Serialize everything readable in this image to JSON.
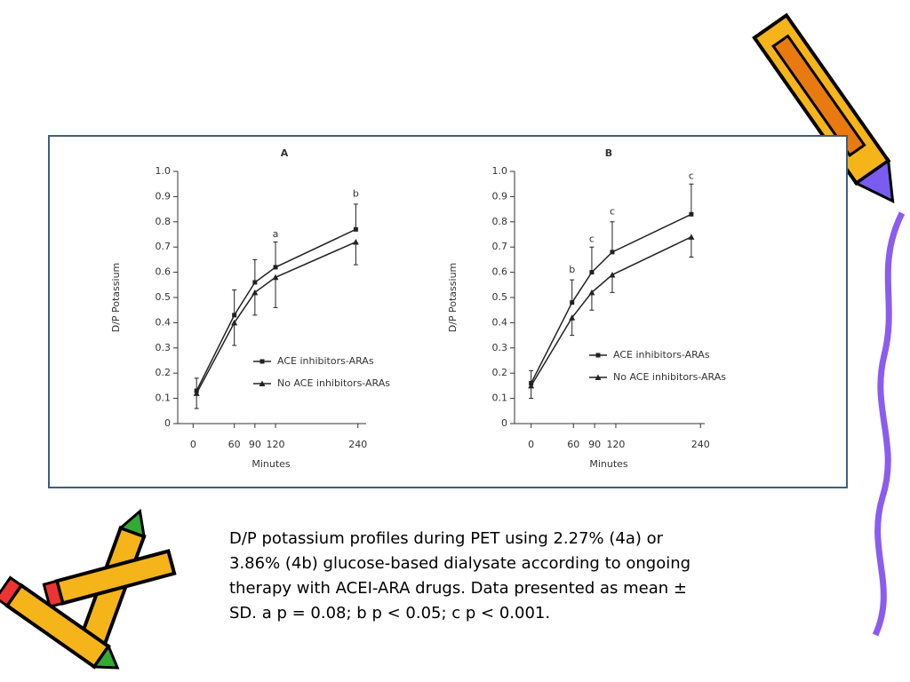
{
  "chart_data": [
    {
      "type": "line",
      "title": "A",
      "xlabel": "Minutes",
      "ylabel": "D/P Potassium",
      "x": [
        5,
        60,
        90,
        120,
        237
      ],
      "xlim": [
        -25,
        252
      ],
      "xticks": [
        0,
        60,
        90,
        120,
        240
      ],
      "ylim": [
        0,
        1
      ],
      "yticks": [
        0,
        0.1,
        0.2,
        0.3,
        0.4,
        0.5,
        0.6,
        0.7,
        0.8,
        0.9,
        {
          "value": 1,
          "label": "1.0"
        }
      ],
      "series": [
        {
          "name": "ACE inhibitors-ARAs",
          "marker": "square",
          "color": "#222",
          "error_direction": "up",
          "values": [
            0.13,
            0.43,
            0.56,
            0.62,
            0.77
          ],
          "errors": [
            0.05,
            0.1,
            0.09,
            0.1,
            0.1
          ]
        },
        {
          "name": "No ACE inhibitors-ARAs",
          "marker": "triangle",
          "color": "#222",
          "error_direction": "down",
          "values": [
            0.12,
            0.4,
            0.52,
            0.58,
            0.72
          ],
          "errors": [
            0.06,
            0.09,
            0.09,
            0.12,
            0.09
          ]
        }
      ],
      "annotations": [
        {
          "text": "a",
          "x": 120,
          "y": 0.75
        },
        {
          "text": "b",
          "x": 237,
          "y": 0.91
        }
      ]
    },
    {
      "type": "line",
      "title": "B",
      "xlabel": "Minutes",
      "ylabel": "D/P Potassium",
      "x": [
        0,
        58,
        86,
        115,
        227
      ],
      "xlim": [
        -26,
        246
      ],
      "xticks": [
        0,
        60,
        90,
        120,
        240
      ],
      "ylim": [
        0,
        1
      ],
      "yticks": [
        0,
        0.1,
        0.2,
        0.3,
        0.4,
        0.5,
        0.6,
        0.7,
        0.8,
        0.9,
        {
          "value": 1,
          "label": "1.0"
        }
      ],
      "series": [
        {
          "name": "ACE inhibitors-ARAs",
          "marker": "square",
          "color": "#222",
          "error_direction": "up",
          "values": [
            0.16,
            0.48,
            0.6,
            0.68,
            0.83
          ],
          "errors": [
            0.05,
            0.09,
            0.1,
            0.12,
            0.12
          ]
        },
        {
          "name": "No ACE inhibitors-ARAs",
          "marker": "triangle",
          "color": "#222",
          "error_direction": "down",
          "values": [
            0.15,
            0.42,
            0.52,
            0.59,
            0.74
          ],
          "errors": [
            0.05,
            0.07,
            0.07,
            0.07,
            0.08
          ]
        }
      ],
      "annotations": [
        {
          "text": "b",
          "x": 58,
          "y": 0.61
        },
        {
          "text": "c",
          "x": 86,
          "y": 0.73
        },
        {
          "text": "c",
          "x": 115,
          "y": 0.84
        },
        {
          "text": "c",
          "x": 227,
          "y": 0.98
        }
      ]
    }
  ],
  "caption": [
    "D/P potassium profiles during PET using 2.27% (4a) or",
    "3.86% (4b) glucose-based dialysate according to ongoing",
    "therapy with ACEI-ARA drugs. Data presented as mean ±",
    "SD. a p = 0.08; b p < 0.05; c p < 0.001."
  ]
}
